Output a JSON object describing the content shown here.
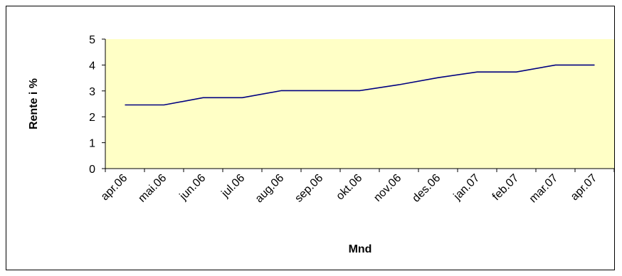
{
  "chart_data": {
    "type": "line",
    "title": "",
    "xlabel": "Mnd",
    "ylabel": "Rente i %",
    "ylim": [
      0,
      5
    ],
    "yticks": [
      0,
      1,
      2,
      3,
      4,
      5
    ],
    "categories": [
      "apr.06",
      "mai.06",
      "jun.06",
      "jul.06",
      "aug.06",
      "sep.06",
      "okt.06",
      "nov.06",
      "des.06",
      "jan.07",
      "feb.07",
      "mar.07",
      "apr.07"
    ],
    "series": [
      {
        "values": [
          2.46,
          2.46,
          2.74,
          2.74,
          3.01,
          3.01,
          3.01,
          3.24,
          3.51,
          3.73,
          3.73,
          4.0,
          4.0
        ]
      }
    ],
    "grid": "none",
    "legend": "none",
    "colors": {
      "plot_background": "#FFFFC6",
      "line": "#000080",
      "axis": "#000000"
    }
  }
}
